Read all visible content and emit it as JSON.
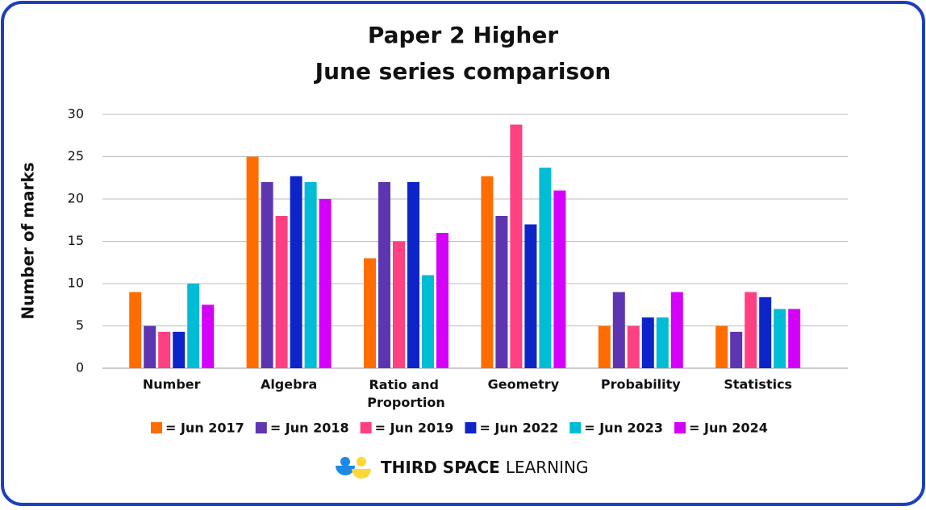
{
  "chart_data": {
    "type": "bar",
    "title": "Paper 2 Higher",
    "subtitle": "June series comparison",
    "y_label": "Number of marks",
    "categories": [
      "Number",
      "Algebra",
      "Ratio and Proportion",
      "Geometry",
      "Probability",
      "Statistics"
    ],
    "series": [
      {
        "name": "= Jun 2017",
        "color": "#ff6d00",
        "values": [
          9,
          25,
          13,
          22.7,
          5,
          5
        ]
      },
      {
        "name": "= Jun 2018",
        "color": "#5e35b1",
        "values": [
          5,
          22,
          22,
          18,
          9,
          4.3
        ]
      },
      {
        "name": "= Jun 2019",
        "color": "#ff4081",
        "values": [
          4.3,
          18,
          15,
          28.8,
          5,
          9
        ]
      },
      {
        "name": "= Jun 2022",
        "color": "#0d25c8",
        "values": [
          4.3,
          22.7,
          22,
          17,
          6,
          8.4
        ]
      },
      {
        "name": "= Jun 2023",
        "color": "#00bcd4",
        "values": [
          10,
          22,
          11,
          23.7,
          6,
          7
        ]
      },
      {
        "name": "= Jun 2024",
        "color": "#d500f9",
        "values": [
          7.5,
          20,
          16,
          21,
          9,
          7
        ]
      }
    ],
    "ylim": [
      0,
      30
    ],
    "yticks": [
      0,
      5,
      10,
      15,
      20,
      25,
      30
    ],
    "grid": true,
    "brand": "THIRD SPACE",
    "brand_suffix": "LEARNING"
  }
}
